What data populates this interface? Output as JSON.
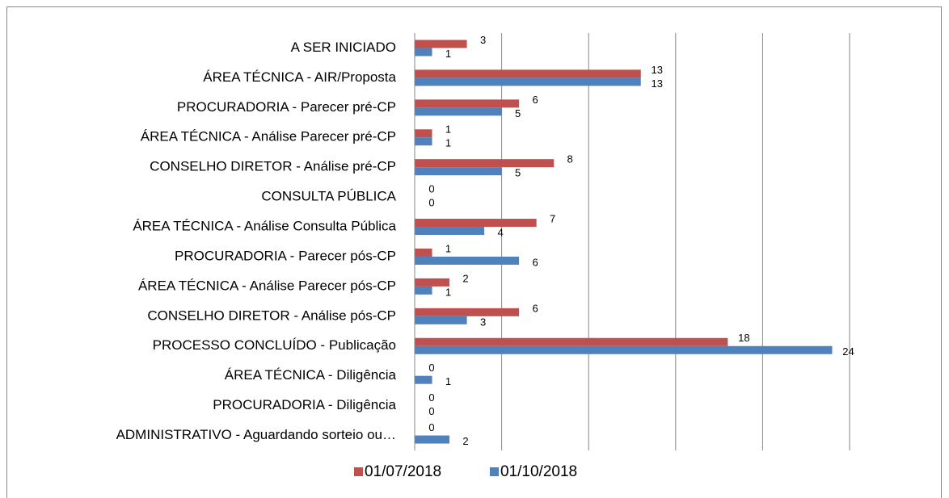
{
  "chart_data": {
    "type": "bar",
    "orientation": "horizontal",
    "categories": [
      "A SER INICIADO",
      "ÁREA TÉCNICA - AIR/Proposta",
      "PROCURADORIA - Parecer pré-CP",
      "ÁREA TÉCNICA - Análise Parecer pré-CP",
      "CONSELHO DIRETOR - Análise pré-CP",
      "CONSULTA PÚBLICA",
      "ÁREA TÉCNICA - Análise Consulta Pública",
      "PROCURADORIA - Parecer pós-CP",
      "ÁREA TÉCNICA - Análise Parecer pós-CP",
      "CONSELHO DIRETOR - Análise pós-CP",
      "PROCESSO CONCLUÍDO - Publicação",
      "ÁREA TÉCNICA - Diligência",
      "PROCURADORIA - Diligência",
      "ADMINISTRATIVO - Aguardando sorteio ou…"
    ],
    "series": [
      {
        "name": "01/07/2018",
        "color": "#c0504d",
        "values": [
          3,
          13,
          6,
          1,
          8,
          0,
          7,
          1,
          2,
          6,
          18,
          0,
          0,
          0
        ]
      },
      {
        "name": "01/10/2018",
        "color": "#4f81bd",
        "values": [
          1,
          13,
          5,
          1,
          5,
          0,
          4,
          6,
          1,
          3,
          24,
          1,
          0,
          2
        ]
      }
    ],
    "xlim": [
      0,
      25
    ],
    "xticks": [
      0,
      5,
      10,
      15,
      20,
      25
    ],
    "grid": true,
    "legend": "bottom"
  }
}
